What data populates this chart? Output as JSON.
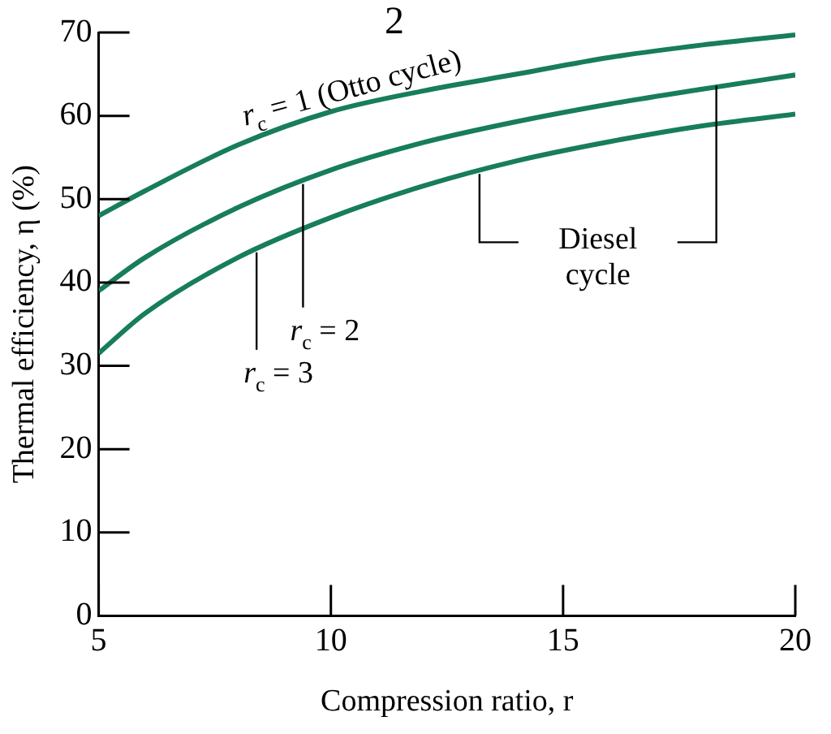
{
  "chart_data": {
    "type": "line",
    "xlabel": "Compression ratio, r",
    "ylabel": "Thermal efficiency, η (%)",
    "xlim": [
      5,
      20
    ],
    "xticks": [
      5,
      10,
      15,
      20
    ],
    "ylim": [
      0,
      70
    ],
    "yticks": [
      0,
      10,
      20,
      30,
      40,
      50,
      60,
      70
    ],
    "grid": false,
    "legend": false,
    "marker": "none",
    "line_style": "solid",
    "series": [
      {
        "color": "#177d5c",
        "x": [
          5,
          6,
          8,
          10,
          12,
          14,
          16,
          18,
          20
        ],
        "values": [
          48,
          51,
          56.5,
          60.5,
          63,
          65,
          67,
          68.5,
          69.7
        ]
      },
      {
        "color": "#177d5c",
        "x": [
          5,
          6,
          8,
          10,
          12,
          14,
          16,
          18,
          20
        ],
        "values": [
          39,
          43,
          49,
          53.5,
          56.8,
          59.3,
          61.4,
          63.2,
          64.9
        ]
      },
      {
        "color": "#177d5c",
        "x": [
          5,
          6,
          8,
          10,
          12,
          14,
          16,
          18,
          20
        ],
        "values": [
          31.5,
          36.3,
          43,
          47.8,
          51.6,
          54.6,
          56.9,
          58.8,
          60.2
        ]
      }
    ],
    "annotations": [
      {
        "text": "r$_{c}$ = 1 (Otto cycle)",
        "x": 10.5,
        "y": 61.1
      },
      {
        "text": "r$_{c}$ = 2",
        "x": 9.4,
        "y": 52.2
      },
      {
        "text": "r$_{c}$ = 3",
        "x": 8.4,
        "y": 44
      },
      {
        "text": "Diesel cycle",
        "x": 13.2,
        "y": 53.4
      },
      "2"
    ]
  }
}
